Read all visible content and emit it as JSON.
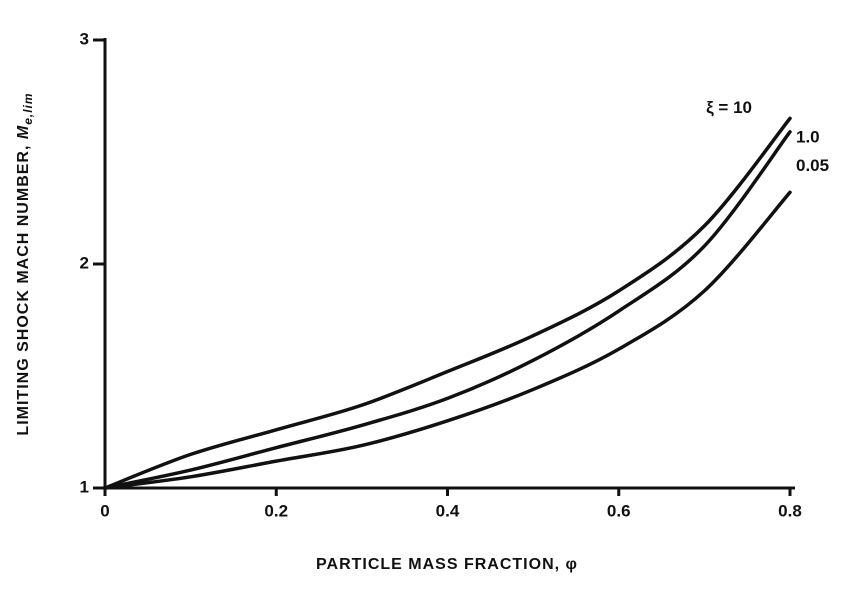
{
  "chart_data": {
    "type": "line",
    "x_label": "PARTICLE MASS FRACTION, φ",
    "y_label": {
      "text": "LIMITING SHOCK MACH NUMBER, ",
      "symbol": "M",
      "subscript": "e,lim"
    },
    "x": [
      0,
      0.1,
      0.2,
      0.3,
      0.4,
      0.5,
      0.6,
      0.7,
      0.8
    ],
    "series": [
      {
        "name": "ξ = 10",
        "color": "#111111",
        "values": [
          1,
          1.15,
          1.26,
          1.37,
          1.52,
          1.68,
          1.88,
          2.17,
          2.65
        ]
      },
      {
        "name": "1.0",
        "color": "#111111",
        "values": [
          1,
          1.08,
          1.18,
          1.28,
          1.4,
          1.57,
          1.79,
          2.08,
          2.59
        ]
      },
      {
        "name": "0.05",
        "color": "#111111",
        "values": [
          1,
          1.05,
          1.12,
          1.19,
          1.3,
          1.44,
          1.62,
          1.88,
          2.32
        ]
      }
    ],
    "xlim": [
      0,
      0.8
    ],
    "ylim": [
      1,
      3
    ],
    "xticks": [
      0,
      0.2,
      0.4,
      0.6,
      0.8
    ],
    "yticks": [
      1,
      2,
      3
    ]
  }
}
